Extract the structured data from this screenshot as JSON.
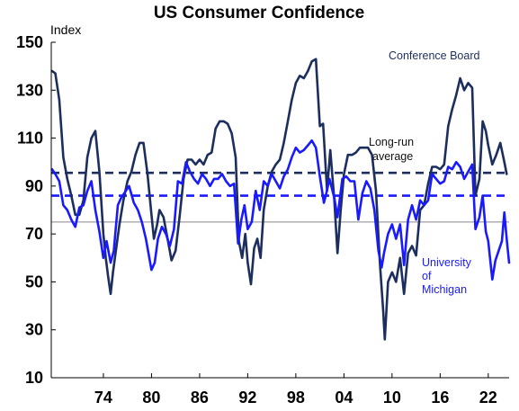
{
  "chart_data": {
    "type": "line",
    "title": "US Consumer Confidence",
    "ylabel": "Index",
    "ylim": [
      10,
      150
    ],
    "y_ticks": [
      "150",
      "130",
      "110",
      "90",
      "70",
      "50",
      "30",
      "10"
    ],
    "x_ticks": [
      "74",
      "80",
      "86",
      "92",
      "98",
      "04",
      "10",
      "16",
      "22"
    ],
    "x_tick_years": [
      1974,
      1980,
      1986,
      1992,
      1998,
      2004,
      2010,
      2016,
      2022
    ],
    "xlim": [
      1967.5,
      2024.6
    ],
    "grid": false,
    "reference_line": 75,
    "colors": {
      "conference_board": "#1c2e5e",
      "michigan": "#1a1aff",
      "reference": "#888888"
    },
    "series": [
      {
        "name": "Conference Board",
        "label_lines": [
          "Conference Board"
        ],
        "color": "#1c2e5e",
        "average": 95.5,
        "points": [
          [
            1967.6,
            138
          ],
          [
            1968.0,
            137
          ],
          [
            1968.5,
            126
          ],
          [
            1969.0,
            102
          ],
          [
            1969.5,
            93
          ],
          [
            1970.0,
            86
          ],
          [
            1970.5,
            78
          ],
          [
            1971.0,
            78
          ],
          [
            1971.5,
            84
          ],
          [
            1972.0,
            102
          ],
          [
            1972.5,
            110
          ],
          [
            1973.0,
            113
          ],
          [
            1973.5,
            96
          ],
          [
            1974.0,
            70
          ],
          [
            1974.3,
            60
          ],
          [
            1974.6,
            52
          ],
          [
            1974.9,
            45
          ],
          [
            1975.2,
            54
          ],
          [
            1975.6,
            64
          ],
          [
            1976.0,
            74
          ],
          [
            1976.5,
            84
          ],
          [
            1977.0,
            92
          ],
          [
            1977.5,
            96
          ],
          [
            1978.0,
            103
          ],
          [
            1978.5,
            108
          ],
          [
            1979.0,
            108
          ],
          [
            1979.5,
            95
          ],
          [
            1980.0,
            78
          ],
          [
            1980.3,
            68
          ],
          [
            1980.7,
            74
          ],
          [
            1981.0,
            80
          ],
          [
            1981.5,
            77
          ],
          [
            1982.0,
            68
          ],
          [
            1982.5,
            59
          ],
          [
            1983.0,
            63
          ],
          [
            1983.5,
            77
          ],
          [
            1984.0,
            93
          ],
          [
            1984.5,
            101
          ],
          [
            1985.0,
            101
          ],
          [
            1985.5,
            99
          ],
          [
            1986.0,
            101
          ],
          [
            1986.5,
            99
          ],
          [
            1987.0,
            103
          ],
          [
            1987.5,
            104
          ],
          [
            1988.0,
            114
          ],
          [
            1988.5,
            117
          ],
          [
            1989.0,
            117
          ],
          [
            1989.5,
            116
          ],
          [
            1990.0,
            112
          ],
          [
            1990.5,
            102
          ],
          [
            1990.9,
            67
          ],
          [
            1991.3,
            60
          ],
          [
            1991.7,
            70
          ],
          [
            1992.0,
            58
          ],
          [
            1992.4,
            49
          ],
          [
            1992.8,
            64
          ],
          [
            1993.2,
            68
          ],
          [
            1993.6,
            60
          ],
          [
            1994.0,
            80
          ],
          [
            1994.5,
            90
          ],
          [
            1995.0,
            96
          ],
          [
            1995.5,
            99
          ],
          [
            1996.0,
            101
          ],
          [
            1996.5,
            108
          ],
          [
            1997.0,
            117
          ],
          [
            1997.5,
            126
          ],
          [
            1998.0,
            133
          ],
          [
            1998.5,
            136
          ],
          [
            1999.0,
            135
          ],
          [
            1999.5,
            138
          ],
          [
            2000.0,
            142
          ],
          [
            2000.5,
            143
          ],
          [
            2001.0,
            115
          ],
          [
            2001.4,
            116
          ],
          [
            2001.9,
            88
          ],
          [
            2002.3,
            105
          ],
          [
            2002.8,
            84
          ],
          [
            2003.2,
            62
          ],
          [
            2003.6,
            80
          ],
          [
            2004.0,
            95
          ],
          [
            2004.5,
            103
          ],
          [
            2005.0,
            103
          ],
          [
            2005.5,
            104
          ],
          [
            2006.0,
            106
          ],
          [
            2006.5,
            106
          ],
          [
            2007.0,
            106
          ],
          [
            2007.5,
            103
          ],
          [
            2008.0,
            88
          ],
          [
            2008.5,
            57
          ],
          [
            2008.9,
            38
          ],
          [
            2009.1,
            26
          ],
          [
            2009.5,
            50
          ],
          [
            2010.0,
            54
          ],
          [
            2010.5,
            50
          ],
          [
            2011.0,
            60
          ],
          [
            2011.5,
            45
          ],
          [
            2012.0,
            62
          ],
          [
            2012.5,
            65
          ],
          [
            2013.0,
            61
          ],
          [
            2013.5,
            80
          ],
          [
            2014.0,
            82
          ],
          [
            2014.5,
            91
          ],
          [
            2015.0,
            98
          ],
          [
            2015.5,
            98
          ],
          [
            2016.0,
            97
          ],
          [
            2016.5,
            99
          ],
          [
            2017.0,
            115
          ],
          [
            2017.5,
            122
          ],
          [
            2018.0,
            128
          ],
          [
            2018.5,
            135
          ],
          [
            2019.0,
            130
          ],
          [
            2019.5,
            133
          ],
          [
            2020.0,
            131
          ],
          [
            2020.4,
            86
          ],
          [
            2020.9,
            93
          ],
          [
            2021.3,
            117
          ],
          [
            2021.7,
            113
          ],
          [
            2022.0,
            107
          ],
          [
            2022.5,
            99
          ],
          [
            2023.0,
            103
          ],
          [
            2023.5,
            108
          ],
          [
            2024.0,
            100
          ],
          [
            2024.3,
            95
          ]
        ]
      },
      {
        "name": "University of Michigan",
        "label_lines": [
          "University",
          "of",
          "Michigan"
        ],
        "color": "#1a1aff",
        "average": 86,
        "points": [
          [
            1967.6,
            97
          ],
          [
            1968.0,
            95
          ],
          [
            1968.5,
            92
          ],
          [
            1969.0,
            82
          ],
          [
            1969.5,
            80
          ],
          [
            1970.0,
            76
          ],
          [
            1970.5,
            73
          ],
          [
            1971.0,
            81
          ],
          [
            1971.5,
            82
          ],
          [
            1972.0,
            88
          ],
          [
            1972.5,
            92
          ],
          [
            1973.0,
            80
          ],
          [
            1973.5,
            71
          ],
          [
            1974.0,
            60
          ],
          [
            1974.4,
            67
          ],
          [
            1974.9,
            58
          ],
          [
            1975.3,
            63
          ],
          [
            1975.8,
            82
          ],
          [
            1976.2,
            85
          ],
          [
            1976.8,
            88
          ],
          [
            1977.2,
            90
          ],
          [
            1977.8,
            83
          ],
          [
            1978.3,
            80
          ],
          [
            1978.8,
            75
          ],
          [
            1979.3,
            68
          ],
          [
            1980.0,
            55
          ],
          [
            1980.4,
            58
          ],
          [
            1980.8,
            68
          ],
          [
            1981.3,
            73
          ],
          [
            1981.8,
            70
          ],
          [
            1982.3,
            65
          ],
          [
            1982.8,
            72
          ],
          [
            1983.3,
            92
          ],
          [
            1983.8,
            91
          ],
          [
            1984.3,
            100
          ],
          [
            1984.8,
            96
          ],
          [
            1985.3,
            93
          ],
          [
            1985.8,
            91
          ],
          [
            1986.3,
            95
          ],
          [
            1986.8,
            93
          ],
          [
            1987.3,
            90
          ],
          [
            1987.8,
            93
          ],
          [
            1988.3,
            93
          ],
          [
            1988.8,
            95
          ],
          [
            1989.3,
            92
          ],
          [
            1989.8,
            90
          ],
          [
            1990.3,
            91
          ],
          [
            1990.8,
            66
          ],
          [
            1991.2,
            76
          ],
          [
            1991.6,
            82
          ],
          [
            1992.0,
            72
          ],
          [
            1992.5,
            75
          ],
          [
            1993.0,
            88
          ],
          [
            1993.5,
            80
          ],
          [
            1994.0,
            92
          ],
          [
            1994.5,
            90
          ],
          [
            1995.0,
            95
          ],
          [
            1995.5,
            92
          ],
          [
            1996.0,
            89
          ],
          [
            1996.5,
            94
          ],
          [
            1997.0,
            97
          ],
          [
            1997.5,
            102
          ],
          [
            1998.0,
            106
          ],
          [
            1998.5,
            104
          ],
          [
            1999.0,
            105
          ],
          [
            1999.5,
            107
          ],
          [
            2000.0,
            109
          ],
          [
            2000.5,
            106
          ],
          [
            2001.0,
            94
          ],
          [
            2001.5,
            83
          ],
          [
            2001.8,
            87
          ],
          [
            2002.2,
            93
          ],
          [
            2002.8,
            85
          ],
          [
            2003.2,
            77
          ],
          [
            2003.8,
            93
          ],
          [
            2004.3,
            94
          ],
          [
            2004.8,
            92
          ],
          [
            2005.3,
            92
          ],
          [
            2005.8,
            76
          ],
          [
            2006.3,
            87
          ],
          [
            2006.8,
            92
          ],
          [
            2007.3,
            89
          ],
          [
            2007.8,
            80
          ],
          [
            2008.3,
            63
          ],
          [
            2008.7,
            56
          ],
          [
            2009.0,
            62
          ],
          [
            2009.5,
            70
          ],
          [
            2010.0,
            74
          ],
          [
            2010.5,
            68
          ],
          [
            2011.0,
            74
          ],
          [
            2011.5,
            57
          ],
          [
            2012.0,
            76
          ],
          [
            2012.5,
            82
          ],
          [
            2013.0,
            76
          ],
          [
            2013.5,
            84
          ],
          [
            2014.0,
            82
          ],
          [
            2014.5,
            84
          ],
          [
            2015.0,
            95
          ],
          [
            2015.5,
            93
          ],
          [
            2016.0,
            91
          ],
          [
            2016.5,
            92
          ],
          [
            2017.0,
            98
          ],
          [
            2017.5,
            97
          ],
          [
            2018.0,
            100
          ],
          [
            2018.5,
            98
          ],
          [
            2019.0,
            93
          ],
          [
            2019.5,
            96
          ],
          [
            2020.0,
            99
          ],
          [
            2020.4,
            72
          ],
          [
            2020.9,
            77
          ],
          [
            2021.3,
            86
          ],
          [
            2021.7,
            71
          ],
          [
            2022.0,
            67
          ],
          [
            2022.5,
            51
          ],
          [
            2022.9,
            59
          ],
          [
            2023.3,
            63
          ],
          [
            2023.7,
            67
          ],
          [
            2024.0,
            79
          ],
          [
            2024.3,
            68
          ],
          [
            2024.6,
            58
          ]
        ]
      }
    ],
    "annotations": [
      {
        "text_lines": [
          "Long-run",
          "average"
        ]
      }
    ]
  }
}
